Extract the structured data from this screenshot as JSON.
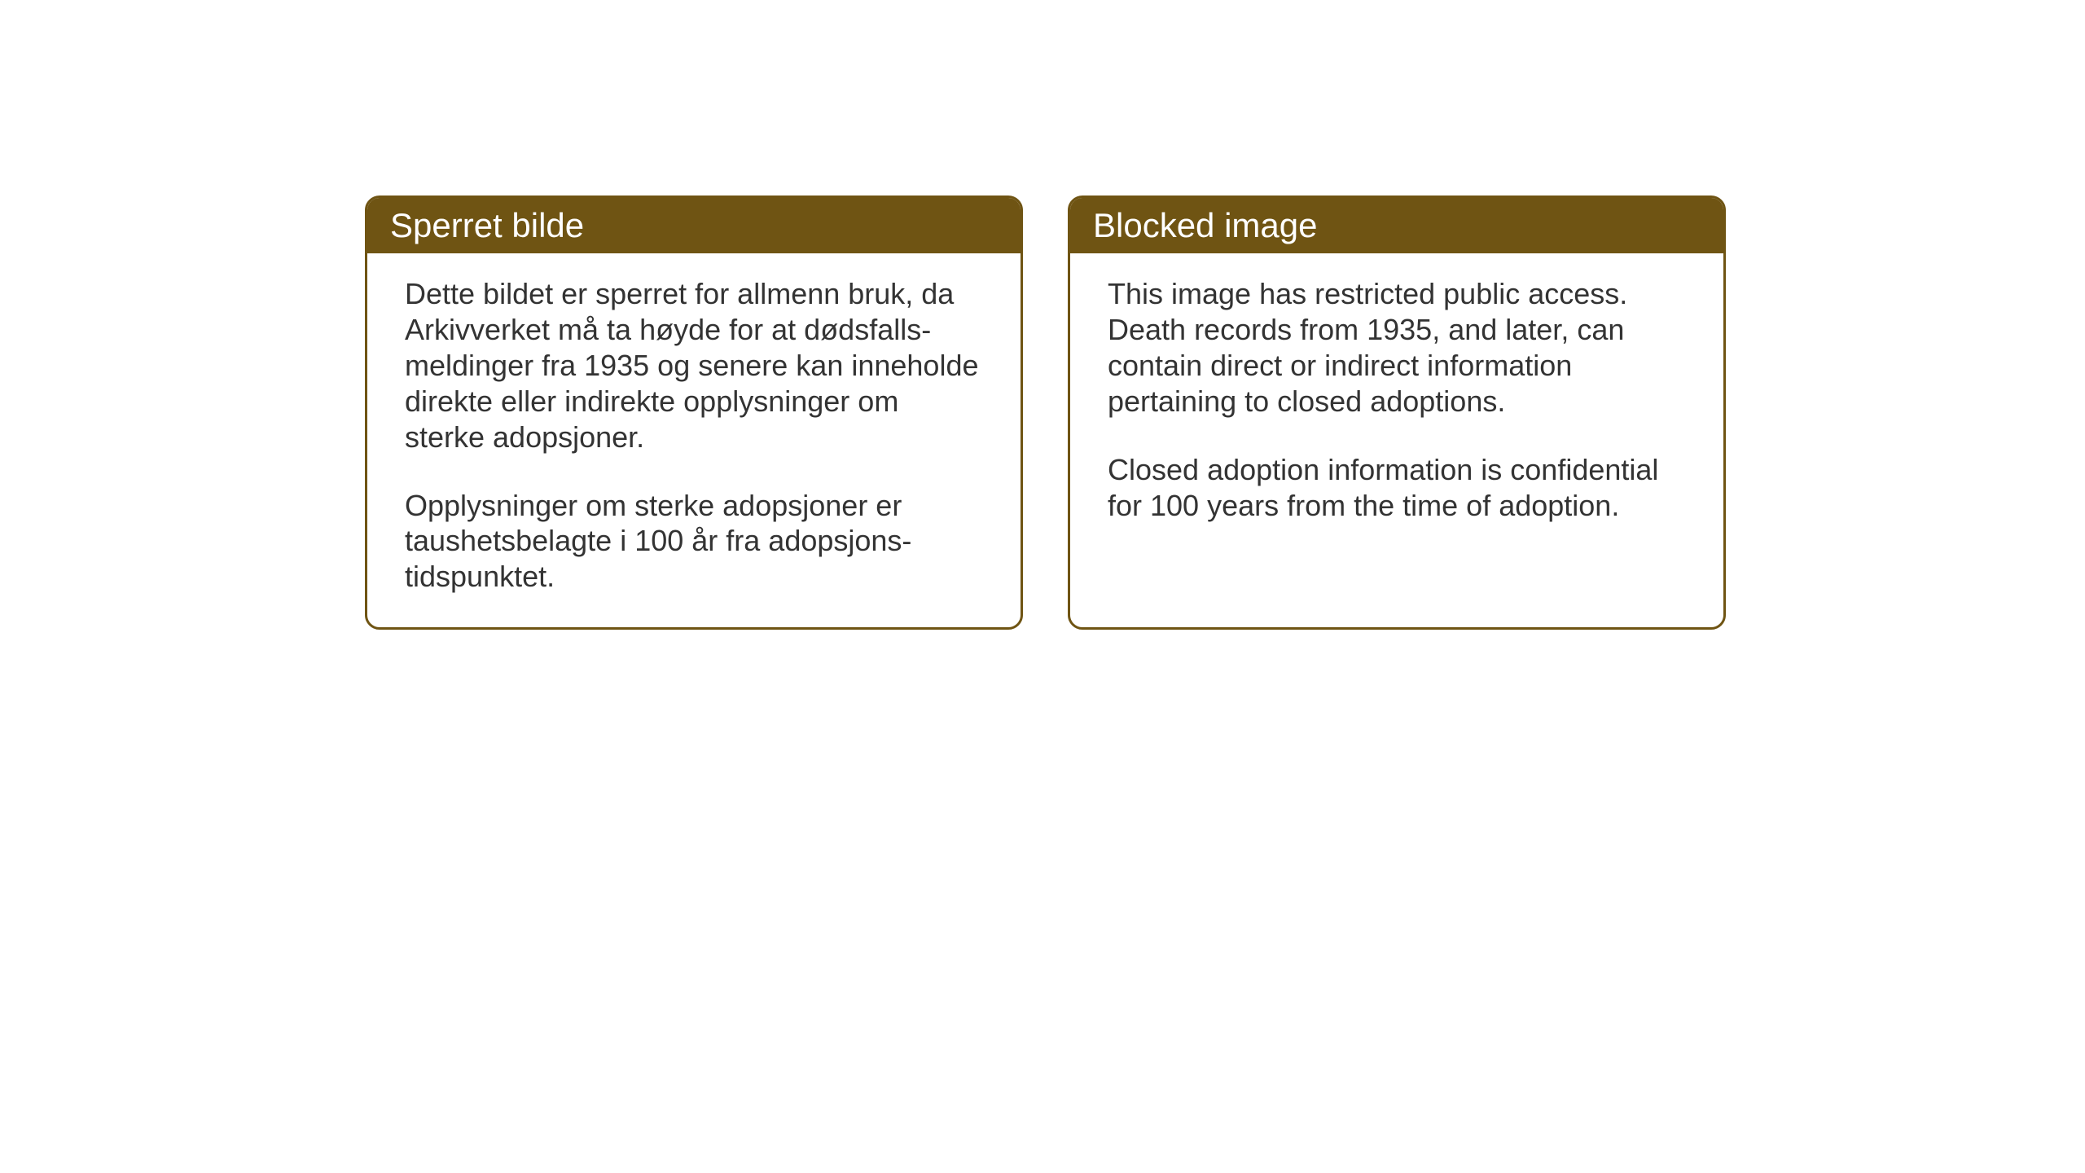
{
  "layout": {
    "background_color": "#ffffff",
    "card_border_color": "#6f5413",
    "card_header_bg": "#6f5413",
    "card_header_text_color": "#ffffff",
    "card_body_text_color": "#333333",
    "card_border_radius": 18,
    "card_border_width": 3,
    "header_fontsize": 42,
    "body_fontsize": 36
  },
  "cards": {
    "norwegian": {
      "title": "Sperret bilde",
      "paragraph1": "Dette bildet er sperret for allmenn bruk, da Arkivverket må ta høyde for at dødsfalls-meldinger fra 1935 og senere kan inneholde direkte eller indirekte opplysninger om sterke adopsjoner.",
      "paragraph2": "Opplysninger om sterke adopsjoner er taushetsbelagte i 100 år fra adopsjons-tidspunktet."
    },
    "english": {
      "title": "Blocked image",
      "paragraph1": "This image has restricted public access. Death records from 1935, and later, can contain direct or indirect information pertaining to closed adoptions.",
      "paragraph2": "Closed adoption information is confidential for 100 years from the time of adoption."
    }
  }
}
